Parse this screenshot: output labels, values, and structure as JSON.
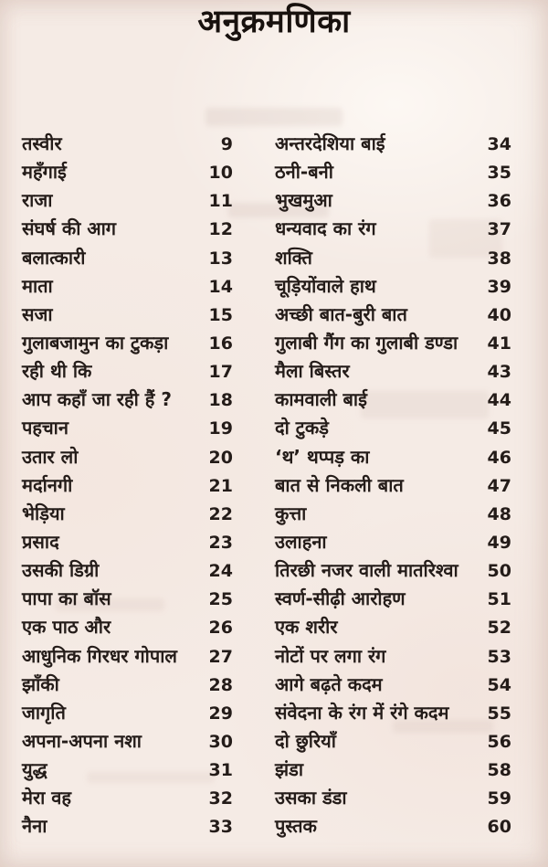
{
  "page": {
    "title": "अनुक्रमणिका"
  },
  "columns": {
    "left": {
      "entries": [
        {
          "title": "तस्वीर",
          "page": 9
        },
        {
          "title": "महँगाई",
          "page": 10
        },
        {
          "title": "राजा",
          "page": 11
        },
        {
          "title": "संघर्ष की आग",
          "page": 12
        },
        {
          "title": "बलात्कारी",
          "page": 13
        },
        {
          "title": "माता",
          "page": 14
        },
        {
          "title": "सजा",
          "page": 15
        },
        {
          "title": "गुलाबजामुन का टुकड़ा",
          "page": 16
        },
        {
          "title": "रही थी कि",
          "page": 17
        },
        {
          "title": "आप कहाँ जा रही हैं ?",
          "page": 18
        },
        {
          "title": "पहचान",
          "page": 19
        },
        {
          "title": "उतार लो",
          "page": 20
        },
        {
          "title": "मर्दानगी",
          "page": 21
        },
        {
          "title": "भेड़िया",
          "page": 22
        },
        {
          "title": "प्रसाद",
          "page": 23
        },
        {
          "title": "उसकी डिग्री",
          "page": 24
        },
        {
          "title": "पापा का बॉस",
          "page": 25
        },
        {
          "title": "एक पाठ और",
          "page": 26
        },
        {
          "title": "आधुनिक गिरधर गोपाल",
          "page": 27
        },
        {
          "title": "झाँकी",
          "page": 28
        },
        {
          "title": "जागृति",
          "page": 29
        },
        {
          "title": "अपना-अपना नशा",
          "page": 30
        },
        {
          "title": "युद्ध",
          "page": 31
        },
        {
          "title": "मेरा वह",
          "page": 32
        },
        {
          "title": "नैना",
          "page": 33
        }
      ]
    },
    "right": {
      "entries": [
        {
          "title": "अन्तरदेशिया बाई",
          "page": 34
        },
        {
          "title": "ठनी-बनी",
          "page": 35
        },
        {
          "title": "भुखमुआ",
          "page": 36
        },
        {
          "title": "धन्यवाद का रंग",
          "page": 37
        },
        {
          "title": "शक्ति",
          "page": 38
        },
        {
          "title": "चूड़ियोंवाले हाथ",
          "page": 39
        },
        {
          "title": "अच्छी बात-बुरी बात",
          "page": 40
        },
        {
          "title": "गुलाबी गैंग का गुलाबी डण्डा",
          "page": 41
        },
        {
          "title": "मैला बिस्तर",
          "page": 43
        },
        {
          "title": "कामवाली बाई",
          "page": 44
        },
        {
          "title": "दो टुकड़े",
          "page": 45
        },
        {
          "title": "‘थ’ थप्पड़ का",
          "page": 46
        },
        {
          "title": "बात से निकली बात",
          "page": 47
        },
        {
          "title": "कुत्ता",
          "page": 48
        },
        {
          "title": "उलाहना",
          "page": 49
        },
        {
          "title": "तिरछी नजर वाली मातरिश्वा",
          "page": 50
        },
        {
          "title": "स्वर्ण-सीढ़ी आरोहण",
          "page": 51
        },
        {
          "title": "एक शरीर",
          "page": 52
        },
        {
          "title": "नोटों पर लगा रंग",
          "page": 53
        },
        {
          "title": "आगे बढ़ते कदम",
          "page": 54
        },
        {
          "title": "संवेदना के रंग में रंगे  कदम",
          "page": 55
        },
        {
          "title": "दो छुरियाँ",
          "page": 56
        },
        {
          "title": "झंडा",
          "page": 58
        },
        {
          "title": "उसका डंडा",
          "page": 59
        },
        {
          "title": "पुस्तक",
          "page": 60
        }
      ]
    }
  }
}
